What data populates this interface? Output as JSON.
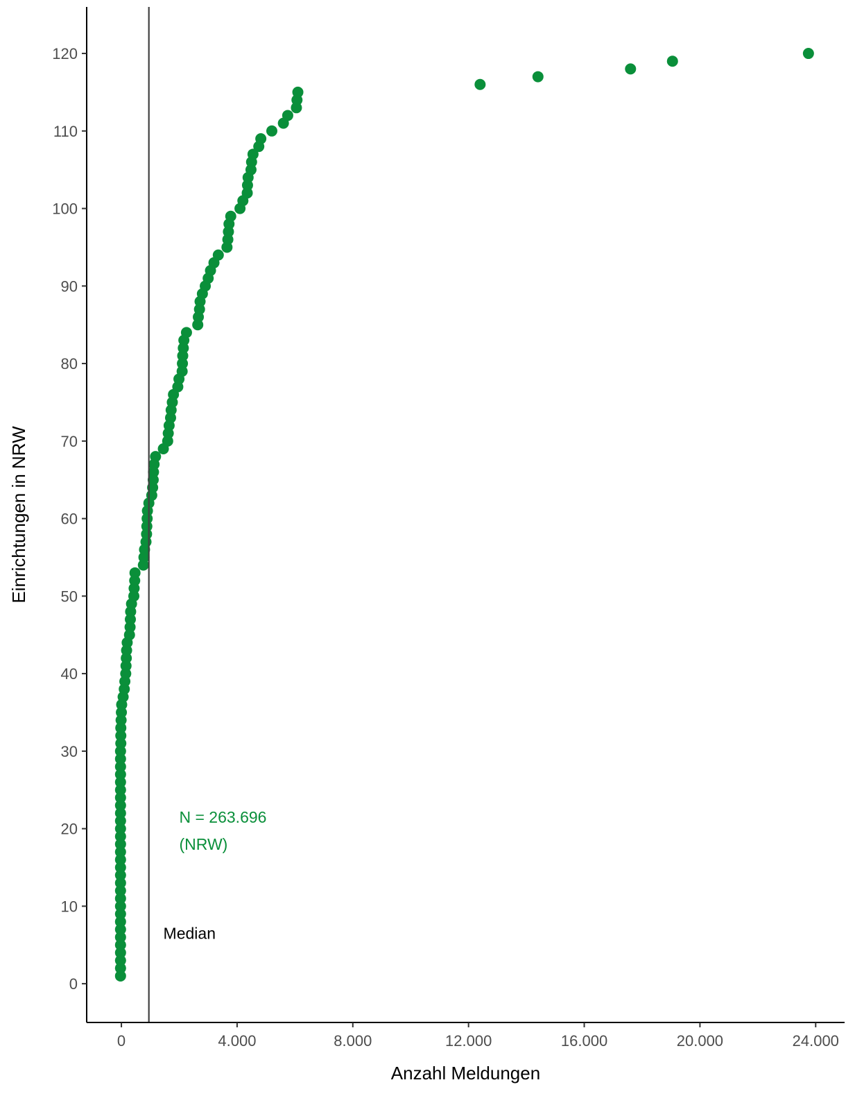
{
  "chart_data": {
    "type": "scatter",
    "title": "",
    "xlabel": "Anzahl Meldungen",
    "ylabel": "Einrichtungen in NRW",
    "xlim": [
      -1200,
      25000
    ],
    "ylim": [
      -5,
      126
    ],
    "x_ticks": [
      0,
      4000,
      8000,
      12000,
      16000,
      20000,
      24000
    ],
    "x_tick_labels": [
      "0",
      "4.000",
      "8.000",
      "12.000",
      "16.000",
      "20.000",
      "24.000"
    ],
    "y_ticks": [
      0,
      10,
      20,
      30,
      40,
      50,
      60,
      70,
      80,
      90,
      100,
      110,
      120
    ],
    "y_tick_labels": [
      "0",
      "10",
      "20",
      "30",
      "40",
      "50",
      "60",
      "70",
      "80",
      "90",
      "100",
      "110",
      "120"
    ],
    "grid": false,
    "legend": "none",
    "point_color": "#0a8f3a",
    "median": {
      "x": 950,
      "label": "Median",
      "color": "#404040"
    },
    "annotation": {
      "line1": "N = 263.696",
      "line2": "(NRW)",
      "color": "#0a8f3a"
    },
    "series": [
      {
        "values": [
          [
            -30,
            1
          ],
          [
            -30,
            2
          ],
          [
            -30,
            3
          ],
          [
            -30,
            4
          ],
          [
            -30,
            5
          ],
          [
            -30,
            6
          ],
          [
            -30,
            7
          ],
          [
            -30,
            8
          ],
          [
            -30,
            9
          ],
          [
            -30,
            10
          ],
          [
            -30,
            11
          ],
          [
            -30,
            12
          ],
          [
            -30,
            13
          ],
          [
            -30,
            14
          ],
          [
            -30,
            15
          ],
          [
            -30,
            16
          ],
          [
            -30,
            17
          ],
          [
            -30,
            18
          ],
          [
            -30,
            19
          ],
          [
            -30,
            20
          ],
          [
            -30,
            21
          ],
          [
            -30,
            22
          ],
          [
            -30,
            23
          ],
          [
            -30,
            24
          ],
          [
            -30,
            25
          ],
          [
            -30,
            26
          ],
          [
            -30,
            27
          ],
          [
            -30,
            28
          ],
          [
            -30,
            29
          ],
          [
            -30,
            30
          ],
          [
            -20,
            31
          ],
          [
            -20,
            32
          ],
          [
            -20,
            33
          ],
          [
            -10,
            34
          ],
          [
            0,
            35
          ],
          [
            10,
            36
          ],
          [
            60,
            37
          ],
          [
            100,
            38
          ],
          [
            120,
            39
          ],
          [
            150,
            40
          ],
          [
            160,
            41
          ],
          [
            170,
            42
          ],
          [
            180,
            43
          ],
          [
            200,
            44
          ],
          [
            280,
            45
          ],
          [
            300,
            46
          ],
          [
            310,
            47
          ],
          [
            320,
            48
          ],
          [
            350,
            49
          ],
          [
            430,
            50
          ],
          [
            440,
            51
          ],
          [
            460,
            52
          ],
          [
            470,
            53
          ],
          [
            760,
            54
          ],
          [
            780,
            55
          ],
          [
            800,
            56
          ],
          [
            850,
            57
          ],
          [
            870,
            58
          ],
          [
            880,
            59
          ],
          [
            890,
            60
          ],
          [
            900,
            61
          ],
          [
            950,
            62
          ],
          [
            1050,
            63
          ],
          [
            1080,
            64
          ],
          [
            1100,
            65
          ],
          [
            1110,
            66
          ],
          [
            1130,
            67
          ],
          [
            1180,
            68
          ],
          [
            1450,
            69
          ],
          [
            1600,
            70
          ],
          [
            1620,
            71
          ],
          [
            1650,
            72
          ],
          [
            1700,
            73
          ],
          [
            1720,
            74
          ],
          [
            1760,
            75
          ],
          [
            1800,
            76
          ],
          [
            1950,
            77
          ],
          [
            1990,
            78
          ],
          [
            2100,
            79
          ],
          [
            2110,
            80
          ],
          [
            2120,
            81
          ],
          [
            2140,
            82
          ],
          [
            2160,
            83
          ],
          [
            2250,
            84
          ],
          [
            2640,
            85
          ],
          [
            2660,
            86
          ],
          [
            2700,
            87
          ],
          [
            2720,
            88
          ],
          [
            2800,
            89
          ],
          [
            2900,
            90
          ],
          [
            3000,
            91
          ],
          [
            3080,
            92
          ],
          [
            3200,
            93
          ],
          [
            3350,
            94
          ],
          [
            3650,
            95
          ],
          [
            3680,
            96
          ],
          [
            3700,
            97
          ],
          [
            3720,
            98
          ],
          [
            3780,
            99
          ],
          [
            4100,
            100
          ],
          [
            4200,
            101
          ],
          [
            4350,
            102
          ],
          [
            4360,
            103
          ],
          [
            4380,
            104
          ],
          [
            4480,
            105
          ],
          [
            4500,
            106
          ],
          [
            4550,
            107
          ],
          [
            4750,
            108
          ],
          [
            4820,
            109
          ],
          [
            5200,
            110
          ],
          [
            5600,
            111
          ],
          [
            5750,
            112
          ],
          [
            6050,
            113
          ],
          [
            6070,
            114
          ],
          [
            6100,
            115
          ],
          [
            12400,
            116
          ],
          [
            14400,
            117
          ],
          [
            17600,
            118
          ],
          [
            19050,
            119
          ],
          [
            23750,
            120
          ]
        ]
      }
    ]
  }
}
